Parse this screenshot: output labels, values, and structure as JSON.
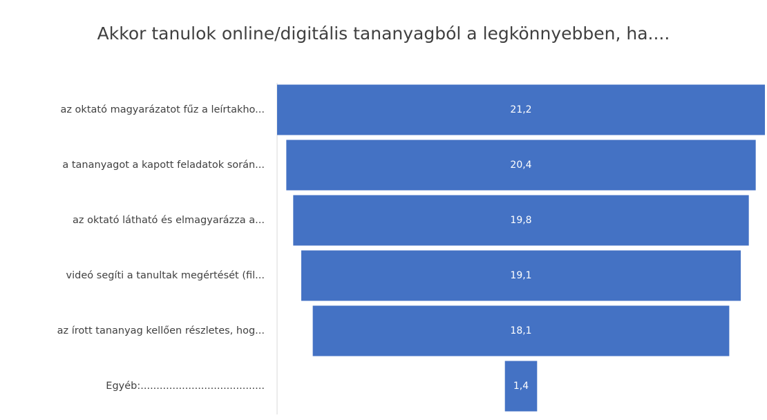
{
  "chart_data": {
    "type": "funnel",
    "title": "Akkor tanulok online/digitális tananyagból a legkönnyebben, ha....",
    "categories": [
      "az oktató magyarázatot fűz a leírtakho...",
      "a tananyagot a kapott feladatok során...",
      "az oktató látható és elmagyarázza a...",
      "videó segíti a tanultak megértését (fil...",
      "az írott tananyag kellően részletes, hog...",
      "Egyéb:......................................."
    ],
    "values": [
      21.2,
      20.4,
      19.8,
      19.1,
      18.1,
      1.4
    ],
    "value_labels": [
      "21,2",
      "20,4",
      "19,8",
      "19,1",
      "18,1",
      "1,4"
    ],
    "color": "#4472c4"
  }
}
